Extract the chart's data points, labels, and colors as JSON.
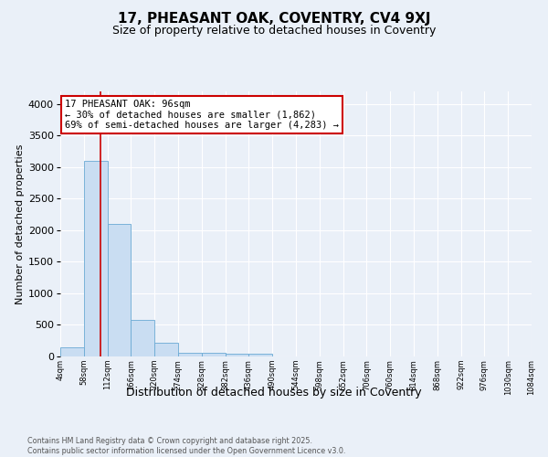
{
  "title": "17, PHEASANT OAK, COVENTRY, CV4 9XJ",
  "subtitle": "Size of property relative to detached houses in Coventry",
  "xlabel": "Distribution of detached houses by size in Coventry",
  "ylabel": "Number of detached properties",
  "footer_line1": "Contains HM Land Registry data © Crown copyright and database right 2025.",
  "footer_line2": "Contains public sector information licensed under the Open Government Licence v3.0.",
  "bin_edges": [
    4,
    58,
    112,
    166,
    220,
    274,
    328,
    382,
    436,
    490,
    544,
    598,
    652,
    706,
    760,
    814,
    868,
    922,
    976,
    1030,
    1084
  ],
  "bar_heights": [
    140,
    3100,
    2100,
    580,
    220,
    65,
    55,
    50,
    40,
    0,
    0,
    0,
    0,
    0,
    0,
    0,
    0,
    0,
    0,
    0
  ],
  "bar_color": "#c9ddf2",
  "bar_edge_color": "#6aaad4",
  "bg_color": "#eaf0f8",
  "grid_color": "#ffffff",
  "property_line_x": 96,
  "property_line_color": "#cc0000",
  "annotation_text": "17 PHEASANT OAK: 96sqm\n← 30% of detached houses are smaller (1,862)\n69% of semi-detached houses are larger (4,283) →",
  "annotation_box_facecolor": "#ffffff",
  "annotation_box_edgecolor": "#cc0000",
  "ylim": [
    0,
    4200
  ],
  "yticks": [
    0,
    500,
    1000,
    1500,
    2000,
    2500,
    3000,
    3500,
    4000
  ],
  "tick_labels": [
    "4sqm",
    "58sqm",
    "112sqm",
    "166sqm",
    "220sqm",
    "274sqm",
    "328sqm",
    "382sqm",
    "436sqm",
    "490sqm",
    "544sqm",
    "598sqm",
    "652sqm",
    "706sqm",
    "760sqm",
    "814sqm",
    "868sqm",
    "922sqm",
    "976sqm",
    "1030sqm",
    "1084sqm"
  ]
}
